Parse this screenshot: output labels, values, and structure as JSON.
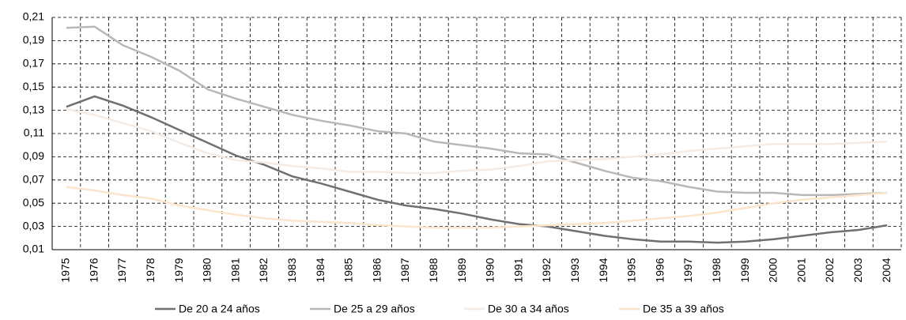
{
  "chart_data": {
    "type": "line",
    "categories": [
      "1975",
      "1976",
      "1977",
      "1978",
      "1979",
      "1980",
      "1981",
      "1982",
      "1983",
      "1984",
      "1985",
      "1986",
      "1987",
      "1988",
      "1989",
      "1990",
      "1991",
      "1992",
      "1993",
      "1994",
      "1995",
      "1996",
      "1997",
      "1998",
      "1999",
      "2000",
      "2001",
      "2002",
      "2003",
      "2004"
    ],
    "series": [
      {
        "name": "De 20 a 24 años",
        "color": "#707070",
        "values": [
          0.133,
          0.142,
          0.134,
          0.124,
          0.113,
          0.102,
          0.091,
          0.083,
          0.073,
          0.067,
          0.06,
          0.053,
          0.048,
          0.045,
          0.041,
          0.036,
          0.032,
          0.03,
          0.026,
          0.022,
          0.019,
          0.017,
          0.017,
          0.016,
          0.017,
          0.019,
          0.022,
          0.025,
          0.027,
          0.031
        ]
      },
      {
        "name": "De 25 a 29 años",
        "color": "#b8b8b8",
        "values": [
          0.201,
          0.202,
          0.186,
          0.176,
          0.164,
          0.148,
          0.14,
          0.133,
          0.126,
          0.121,
          0.117,
          0.112,
          0.11,
          0.103,
          0.1,
          0.097,
          0.093,
          0.092,
          0.085,
          0.078,
          0.072,
          0.069,
          0.064,
          0.06,
          0.059,
          0.059,
          0.057,
          0.057,
          0.058,
          0.059
        ]
      },
      {
        "name": "De 30 a 34 años",
        "color": "#f3ebe4",
        "values": [
          0.131,
          0.126,
          0.119,
          0.112,
          0.102,
          0.093,
          0.087,
          0.085,
          0.082,
          0.08,
          0.077,
          0.077,
          0.076,
          0.076,
          0.078,
          0.079,
          0.082,
          0.086,
          0.087,
          0.088,
          0.09,
          0.092,
          0.095,
          0.097,
          0.099,
          0.101,
          0.101,
          0.101,
          0.102,
          0.103
        ]
      },
      {
        "name": "De 35 a 39 años",
        "color": "#fbe5cc",
        "values": [
          0.064,
          0.061,
          0.057,
          0.054,
          0.048,
          0.044,
          0.04,
          0.037,
          0.035,
          0.034,
          0.033,
          0.031,
          0.03,
          0.029,
          0.029,
          0.029,
          0.03,
          0.031,
          0.032,
          0.033,
          0.035,
          0.037,
          0.039,
          0.042,
          0.046,
          0.05,
          0.053,
          0.055,
          0.057,
          0.059
        ]
      }
    ],
    "ylim": [
      0.01,
      0.21
    ],
    "yticks": [
      {
        "value": 0.01,
        "label": "0,01"
      },
      {
        "value": 0.03,
        "label": "0,03"
      },
      {
        "value": 0.05,
        "label": "0,05"
      },
      {
        "value": 0.07,
        "label": "0,07"
      },
      {
        "value": 0.09,
        "label": "0,09"
      },
      {
        "value": 0.11,
        "label": "0,11"
      },
      {
        "value": 0.13,
        "label": "0,13"
      },
      {
        "value": 0.15,
        "label": "0,15"
      },
      {
        "value": 0.17,
        "label": "0,17"
      },
      {
        "value": 0.19,
        "label": "0,19"
      },
      {
        "value": 0.21,
        "label": "0,21"
      }
    ],
    "grid": true,
    "legend": "bottom"
  }
}
